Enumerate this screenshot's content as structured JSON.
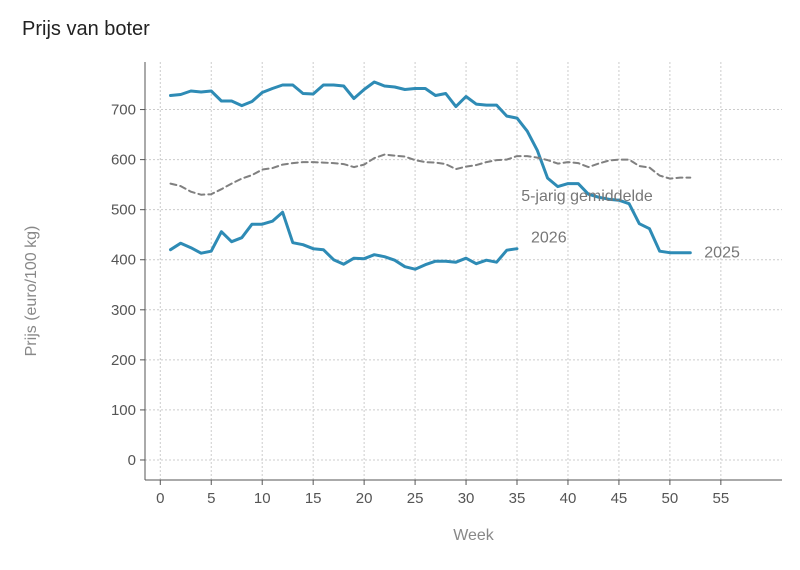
{
  "title": "Prijs van boter",
  "chart_data": {
    "type": "line",
    "title": "Prijs van boter",
    "xlabel": "Week",
    "ylabel": "Prijs (euro/100 kg)",
    "xlim": [
      -1.5,
      61
    ],
    "ylim": [
      -40,
      795
    ],
    "xticks": [
      0,
      5,
      10,
      15,
      20,
      25,
      30,
      35,
      40,
      45,
      50,
      55
    ],
    "yticks": [
      0,
      100,
      200,
      300,
      400,
      500,
      600,
      700
    ],
    "grid": true,
    "colors": {
      "series": "#2e8bb5",
      "average": "#808080",
      "grid": "#cccccc",
      "axis": "#555555"
    },
    "series": [
      {
        "name": "2025",
        "style": "solid",
        "x": [
          1,
          2,
          3,
          4,
          5,
          6,
          7,
          8,
          9,
          10,
          11,
          12,
          13,
          14,
          15,
          16,
          17,
          18,
          19,
          20,
          21,
          22,
          23,
          24,
          25,
          26,
          27,
          28,
          29,
          30,
          31,
          32,
          33,
          34,
          35,
          36,
          37,
          38,
          39,
          40,
          41,
          42,
          43,
          44,
          45,
          46,
          47,
          48,
          49,
          50,
          51,
          52
        ],
        "values": [
          728,
          730,
          737,
          735,
          737,
          717,
          717,
          708,
          716,
          734,
          742,
          749,
          749,
          732,
          731,
          749,
          749,
          747,
          722,
          740,
          755,
          747,
          745,
          740,
          742,
          742,
          728,
          732,
          706,
          726,
          711,
          709,
          709,
          687,
          683,
          657,
          618,
          563,
          546,
          552,
          552,
          531,
          525,
          521,
          519,
          512,
          472,
          462,
          417,
          414,
          414,
          414
        ]
      },
      {
        "name": "2026",
        "style": "solid",
        "x": [
          1,
          2,
          3,
          4,
          5,
          6,
          7,
          8,
          9,
          10,
          11,
          12,
          13,
          14,
          15,
          16,
          17,
          18,
          19,
          20,
          21,
          22,
          23,
          24,
          25,
          26,
          27,
          28,
          29,
          30,
          31,
          32,
          33,
          34,
          35
        ],
        "values": [
          420,
          433,
          424,
          413,
          417,
          456,
          436,
          444,
          471,
          471,
          477,
          495,
          434,
          430,
          422,
          420,
          400,
          391,
          403,
          402,
          410,
          406,
          399,
          386,
          381,
          390,
          397,
          397,
          395,
          403,
          392,
          399,
          395,
          419,
          422
        ]
      },
      {
        "name": "5-jarig gemiddelde",
        "style": "dashed",
        "x": [
          1,
          2,
          3,
          4,
          5,
          6,
          7,
          8,
          9,
          10,
          11,
          12,
          13,
          14,
          15,
          16,
          17,
          18,
          19,
          20,
          21,
          22,
          23,
          24,
          25,
          26,
          27,
          28,
          29,
          30,
          31,
          32,
          33,
          34,
          35,
          36,
          37,
          38,
          39,
          40,
          41,
          42,
          43,
          44,
          45,
          46,
          47,
          48,
          49,
          50,
          51,
          52
        ],
        "values": [
          552,
          547,
          536,
          530,
          531,
          541,
          552,
          562,
          569,
          580,
          583,
          590,
          593,
          595,
          595,
          594,
          593,
          591,
          585,
          590,
          603,
          610,
          608,
          606,
          599,
          595,
          594,
          591,
          581,
          586,
          589,
          595,
          599,
          600,
          607,
          607,
          604,
          599,
          592,
          595,
          593,
          585,
          592,
          598,
          600,
          600,
          587,
          584,
          568,
          562,
          564,
          564
        ]
      }
    ]
  }
}
